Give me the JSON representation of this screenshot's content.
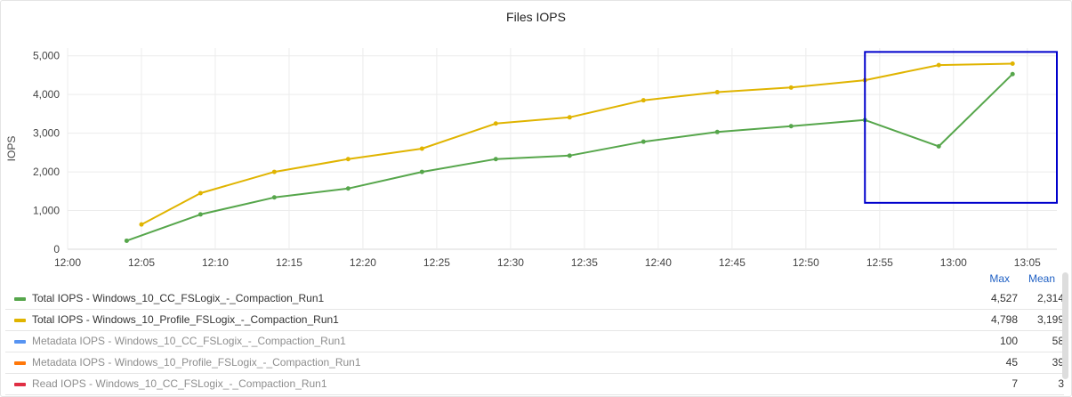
{
  "panel": {
    "title": "Files IOPS"
  },
  "chart_data": {
    "type": "line",
    "title": "Files IOPS",
    "ylabel": "IOPS",
    "xlabel": "",
    "x_ticks": [
      "12:00",
      "12:05",
      "12:10",
      "12:15",
      "12:20",
      "12:25",
      "12:30",
      "12:35",
      "12:40",
      "12:45",
      "12:50",
      "12:55",
      "13:00",
      "13:05"
    ],
    "xlim": [
      "12:00",
      "13:07"
    ],
    "ylim": [
      0,
      5200
    ],
    "y_ticks": [
      0,
      1000,
      2000,
      3000,
      4000,
      5000
    ],
    "y_tick_labels": [
      "0",
      "1,000",
      "2,000",
      "3,000",
      "4,000",
      "5,000"
    ],
    "grid": true,
    "series": [
      {
        "name": "Total IOPS - Windows_10_CC_FSLogix_-_Compaction_Run1",
        "color": "#56a64b",
        "x": [
          "12:04",
          "12:09",
          "12:14",
          "12:19",
          "12:24",
          "12:29",
          "12:34",
          "12:39",
          "12:44",
          "12:49",
          "12:54",
          "12:59",
          "13:04"
        ],
        "values": [
          220,
          900,
          1340,
          1570,
          2000,
          2330,
          2420,
          2780,
          3030,
          3180,
          3340,
          2660,
          4527
        ]
      },
      {
        "name": "Total IOPS - Windows_10_Profile_FSLogix_-_Compaction_Run1",
        "color": "#e0b400",
        "x": [
          "12:05",
          "12:09",
          "12:14",
          "12:19",
          "12:24",
          "12:29",
          "12:34",
          "12:39",
          "12:44",
          "12:49",
          "12:54",
          "12:59",
          "13:04"
        ],
        "values": [
          640,
          1450,
          2000,
          2330,
          2600,
          3250,
          3410,
          3850,
          4060,
          4180,
          4370,
          4760,
          4798
        ]
      }
    ],
    "annotation": {
      "type": "highlight-box",
      "color": "#0000cc",
      "x_range": [
        "12:54",
        "13:07"
      ],
      "y_range": [
        1200,
        5100
      ]
    }
  },
  "legend": {
    "headers": {
      "max": "Max",
      "mean": "Mean"
    },
    "rows": [
      {
        "name": "Total IOPS - Windows_10_CC_FSLogix_-_Compaction_Run1",
        "color": "#56a64b",
        "max": "4,527",
        "mean": "2,314",
        "dim": false
      },
      {
        "name": "Total IOPS - Windows_10_Profile_FSLogix_-_Compaction_Run1",
        "color": "#e0b400",
        "max": "4,798",
        "mean": "3,199",
        "dim": false
      },
      {
        "name": "Metadata IOPS - Windows_10_CC_FSLogix_-_Compaction_Run1",
        "color": "#5794f2",
        "max": "100",
        "mean": "58",
        "dim": true
      },
      {
        "name": "Metadata IOPS - Windows_10_Profile_FSLogix_-_Compaction_Run1",
        "color": "#ff780a",
        "max": "45",
        "mean": "39",
        "dim": true
      },
      {
        "name": "Read IOPS - Windows_10_CC_FSLogix_-_Compaction_Run1",
        "color": "#e02f44",
        "max": "7",
        "mean": "3",
        "dim": true
      }
    ]
  }
}
